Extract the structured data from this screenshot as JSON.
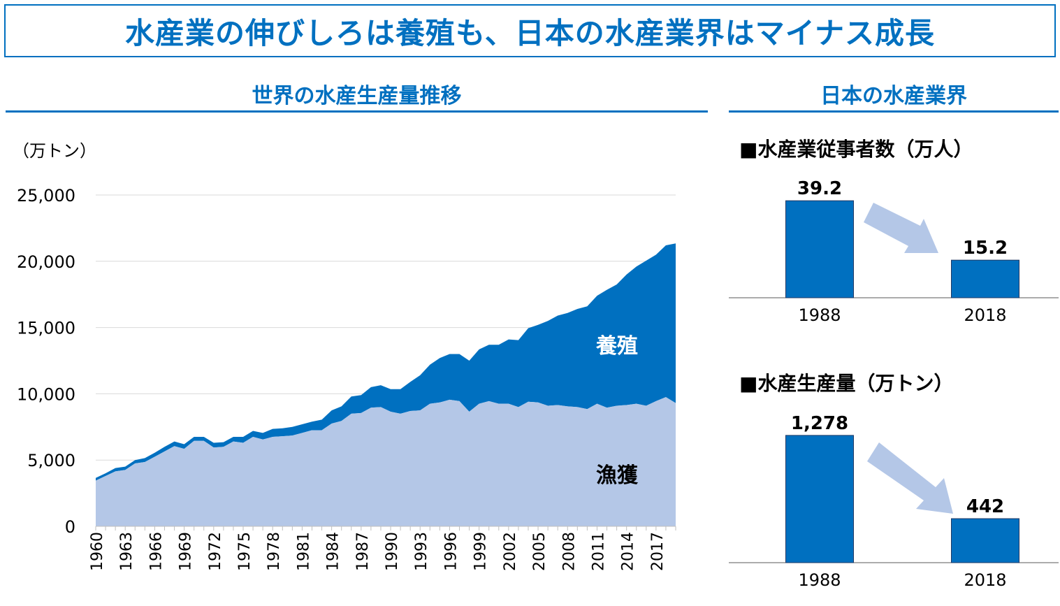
{
  "header": {
    "title": "水産業の伸びしろは養殖も、日本の水産業界はマイナス成長"
  },
  "left_section": {
    "title": "世界の水産生産量推移"
  },
  "right_section": {
    "title": "日本の水産業界",
    "workers_title": "■水産業従事者数（万人）",
    "production_title": "■水産生産量（万トン）"
  },
  "colors": {
    "brand": "#0070c0",
    "capture": "#b4c7e7",
    "aquaculture": "#0070c0",
    "arrow": "#b4c7e7"
  },
  "chart_data": [
    {
      "type": "area",
      "title": "世界の水産生産量推移",
      "unit_label": "（万トン）",
      "ylim": [
        0,
        25000
      ],
      "yticks": [
        0,
        5000,
        10000,
        15000,
        20000,
        25000
      ],
      "ytick_labels": [
        "0",
        "5,000",
        "10,000",
        "15,000",
        "20,000",
        "25,000"
      ],
      "grid": true,
      "stacked": true,
      "x": [
        1960,
        1961,
        1962,
        1963,
        1964,
        1965,
        1966,
        1967,
        1968,
        1969,
        1970,
        1971,
        1972,
        1973,
        1974,
        1975,
        1976,
        1977,
        1978,
        1979,
        1980,
        1981,
        1982,
        1983,
        1984,
        1985,
        1986,
        1987,
        1988,
        1989,
        1990,
        1991,
        1992,
        1993,
        1994,
        1995,
        1996,
        1997,
        1998,
        1999,
        2000,
        2001,
        2002,
        2003,
        2004,
        2005,
        2006,
        2007,
        2008,
        2009,
        2010,
        2011,
        2012,
        2013,
        2014,
        2015,
        2016,
        2017,
        2018,
        2019
      ],
      "xtick_labels": [
        "1960",
        "1963",
        "1966",
        "1969",
        "1972",
        "1975",
        "1978",
        "1981",
        "1984",
        "1987",
        "1990",
        "1993",
        "1996",
        "1999",
        "2002",
        "2005",
        "2008",
        "2011",
        "2014",
        "2017"
      ],
      "series": [
        {
          "name": "漁獲",
          "values": [
            3450,
            3800,
            4150,
            4250,
            4750,
            4850,
            5250,
            5650,
            6050,
            5850,
            6450,
            6450,
            5950,
            6000,
            6400,
            6300,
            6750,
            6550,
            6750,
            6800,
            6850,
            7050,
            7250,
            7250,
            7750,
            7950,
            8500,
            8550,
            8950,
            9000,
            8650,
            8500,
            8700,
            8750,
            9250,
            9350,
            9550,
            9450,
            8650,
            9250,
            9450,
            9250,
            9250,
            9000,
            9400,
            9350,
            9100,
            9150,
            9050,
            9000,
            8850,
            9250,
            8950,
            9100,
            9150,
            9250,
            9100,
            9450,
            9750,
            9300
          ]
        },
        {
          "name": "養殖",
          "values": [
            200,
            200,
            250,
            250,
            250,
            300,
            300,
            350,
            350,
            350,
            300,
            300,
            350,
            350,
            350,
            450,
            450,
            500,
            600,
            600,
            650,
            650,
            650,
            800,
            1000,
            1100,
            1300,
            1350,
            1550,
            1650,
            1700,
            1850,
            2200,
            2650,
            2950,
            3350,
            3450,
            3550,
            3850,
            4100,
            4250,
            4450,
            4850,
            5050,
            5550,
            5850,
            6400,
            6750,
            7050,
            7400,
            7750,
            8150,
            8900,
            9150,
            9850,
            10350,
            10950,
            11050,
            11450,
            12050
          ]
        }
      ],
      "area_labels": [
        "養殖",
        "漁獲"
      ]
    },
    {
      "type": "bar",
      "title": "■水産業従事者数（万人）",
      "categories": [
        "1988",
        "2018"
      ],
      "values": [
        39.2,
        15.2
      ],
      "value_labels": [
        "39.2",
        "15.2"
      ],
      "ylim": [
        0,
        48
      ]
    },
    {
      "type": "bar",
      "title": "■水産生産量（万トン）",
      "categories": [
        "1988",
        "2018"
      ],
      "values": [
        1278,
        442
      ],
      "value_labels": [
        "1,278",
        "442"
      ],
      "ylim": [
        0,
        1600
      ]
    }
  ]
}
